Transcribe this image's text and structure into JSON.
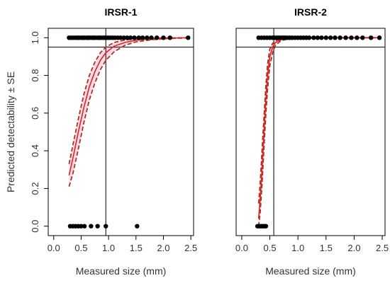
{
  "colors": {
    "points": "#000000",
    "fit": "#d62728",
    "ci": "#b03020",
    "ci_fill": "#f4b8d0",
    "reference": "#000000"
  },
  "chart_data": [
    {
      "type": "scatter",
      "title": "IRSR-1",
      "xlabel": "Measured size (mm)",
      "ylabel": "Predicted detectability ± SE",
      "xlim": [
        -0.1,
        2.55
      ],
      "ylim": [
        -0.05,
        1.05
      ],
      "xticks": [
        "0.0",
        "0.5",
        "1.0",
        "1.5",
        "2.0",
        "2.5"
      ],
      "yticks": [
        "0.0",
        "0.2",
        "0.4",
        "0.6",
        "0.8",
        "1.0"
      ],
      "ref_x": 0.95,
      "ref_y": 0.95,
      "fit": {
        "x": [
          0.28,
          0.35,
          0.45,
          0.55,
          0.65,
          0.75,
          0.85,
          0.95,
          1.1,
          1.3,
          1.5,
          1.8,
          2.1,
          2.45
        ],
        "y": [
          0.27,
          0.36,
          0.5,
          0.63,
          0.74,
          0.82,
          0.88,
          0.92,
          0.955,
          0.975,
          0.987,
          0.995,
          0.998,
          1.0
        ],
        "lower": [
          0.21,
          0.28,
          0.41,
          0.55,
          0.67,
          0.76,
          0.83,
          0.88,
          0.925,
          0.96,
          0.978,
          0.99,
          0.996,
          0.999
        ],
        "upper": [
          0.33,
          0.43,
          0.57,
          0.7,
          0.8,
          0.87,
          0.92,
          0.95,
          0.975,
          0.988,
          0.995,
          0.998,
          0.999,
          1.0
        ]
      },
      "detected_x": [
        0.28,
        0.32,
        0.36,
        0.4,
        0.43,
        0.46,
        0.5,
        0.53,
        0.56,
        0.6,
        0.63,
        0.66,
        0.7,
        0.73,
        0.76,
        0.8,
        0.83,
        0.86,
        0.9,
        0.93,
        0.97,
        1.0,
        1.04,
        1.08,
        1.12,
        1.17,
        1.22,
        1.28,
        1.34,
        1.4,
        1.47,
        1.55,
        1.62,
        1.7,
        1.78,
        1.88,
        2.0,
        2.12,
        2.45
      ],
      "undetected_x": [
        0.3,
        0.35,
        0.4,
        0.45,
        0.5,
        0.56,
        0.68,
        0.8,
        0.95,
        1.52
      ]
    },
    {
      "type": "scatter",
      "title": "IRSR-2",
      "xlabel": "Measured size (mm)",
      "ylabel": "",
      "xlim": [
        -0.1,
        2.55
      ],
      "ylim": [
        -0.05,
        1.05
      ],
      "xticks": [
        "0.0",
        "0.5",
        "1.0",
        "1.5",
        "2.0",
        "2.5"
      ],
      "yticks": [],
      "ref_x": 0.57,
      "ref_y": 0.95,
      "fit": {
        "x": [
          0.3,
          0.33,
          0.36,
          0.4,
          0.43,
          0.46,
          0.5,
          0.55,
          0.6,
          0.7,
          0.85,
          1.0,
          1.5,
          2.45
        ],
        "y": [
          0.04,
          0.15,
          0.3,
          0.52,
          0.68,
          0.8,
          0.9,
          0.95,
          0.975,
          0.99,
          0.997,
          0.999,
          1.0,
          1.0
        ],
        "lower": [
          0.0,
          0.08,
          0.22,
          0.44,
          0.6,
          0.73,
          0.85,
          0.92,
          0.96,
          0.985,
          0.995,
          0.998,
          1.0,
          1.0
        ],
        "upper": [
          0.12,
          0.24,
          0.4,
          0.6,
          0.75,
          0.86,
          0.94,
          0.97,
          0.985,
          0.995,
          0.999,
          1.0,
          1.0,
          1.0
        ]
      },
      "detected_x": [
        0.3,
        0.35,
        0.4,
        0.45,
        0.5,
        0.55,
        0.58,
        0.62,
        0.65,
        0.68,
        0.72,
        0.75,
        0.78,
        0.82,
        0.86,
        0.9,
        0.95,
        1.0,
        1.05,
        1.1,
        1.15,
        1.2,
        1.28,
        1.35,
        1.42,
        1.5,
        1.58,
        1.66,
        1.75,
        1.85,
        1.95,
        2.05,
        2.15,
        2.3,
        2.45
      ],
      "undetected_x": [
        0.28,
        0.31,
        0.34,
        0.37,
        0.4,
        0.43
      ]
    }
  ]
}
